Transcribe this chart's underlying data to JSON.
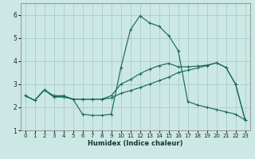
{
  "xlabel": "Humidex (Indice chaleur)",
  "background_color": "#cce8e4",
  "grid_color": "#aacccc",
  "line_color": "#1a6b5a",
  "xlim": [
    -0.5,
    23.5
  ],
  "ylim": [
    1.0,
    6.5
  ],
  "yticks": [
    1,
    2,
    3,
    4,
    5,
    6
  ],
  "xticks": [
    0,
    1,
    2,
    3,
    4,
    5,
    6,
    7,
    8,
    9,
    10,
    11,
    12,
    13,
    14,
    15,
    16,
    17,
    18,
    19,
    20,
    21,
    22,
    23
  ],
  "line1_x": [
    0,
    1,
    2,
    3,
    4,
    5,
    6,
    7,
    8,
    9,
    10,
    11,
    12,
    13,
    14,
    15,
    16,
    17,
    18,
    19,
    20,
    21,
    22,
    23
  ],
  "line1_y": [
    2.5,
    2.3,
    2.75,
    2.45,
    2.45,
    2.35,
    2.35,
    2.35,
    2.35,
    2.5,
    3.0,
    3.2,
    3.45,
    3.65,
    3.8,
    3.9,
    3.75,
    3.75,
    3.78,
    3.82,
    3.92,
    3.72,
    3.0,
    1.45
  ],
  "line2_x": [
    0,
    1,
    2,
    3,
    4,
    5,
    6,
    7,
    8,
    9,
    10,
    11,
    12,
    13,
    14,
    15,
    16,
    17,
    18,
    19,
    20,
    21,
    22,
    23
  ],
  "line2_y": [
    2.5,
    2.3,
    2.75,
    2.45,
    2.45,
    2.35,
    1.7,
    1.65,
    1.65,
    1.7,
    3.7,
    5.35,
    5.95,
    5.65,
    5.5,
    5.1,
    4.45,
    2.25,
    2.1,
    2.0,
    1.9,
    1.8,
    1.7,
    1.45
  ],
  "line3_x": [
    0,
    1,
    2,
    3,
    4,
    5,
    6,
    7,
    8,
    9,
    10,
    11,
    12,
    13,
    14,
    15,
    16,
    17,
    18,
    19,
    20,
    21,
    22,
    23
  ],
  "line3_y": [
    2.5,
    2.3,
    2.75,
    2.5,
    2.5,
    2.35,
    2.35,
    2.35,
    2.35,
    2.4,
    2.6,
    2.72,
    2.85,
    3.0,
    3.15,
    3.3,
    3.5,
    3.6,
    3.7,
    3.8,
    3.92,
    3.72,
    3.0,
    1.45
  ]
}
